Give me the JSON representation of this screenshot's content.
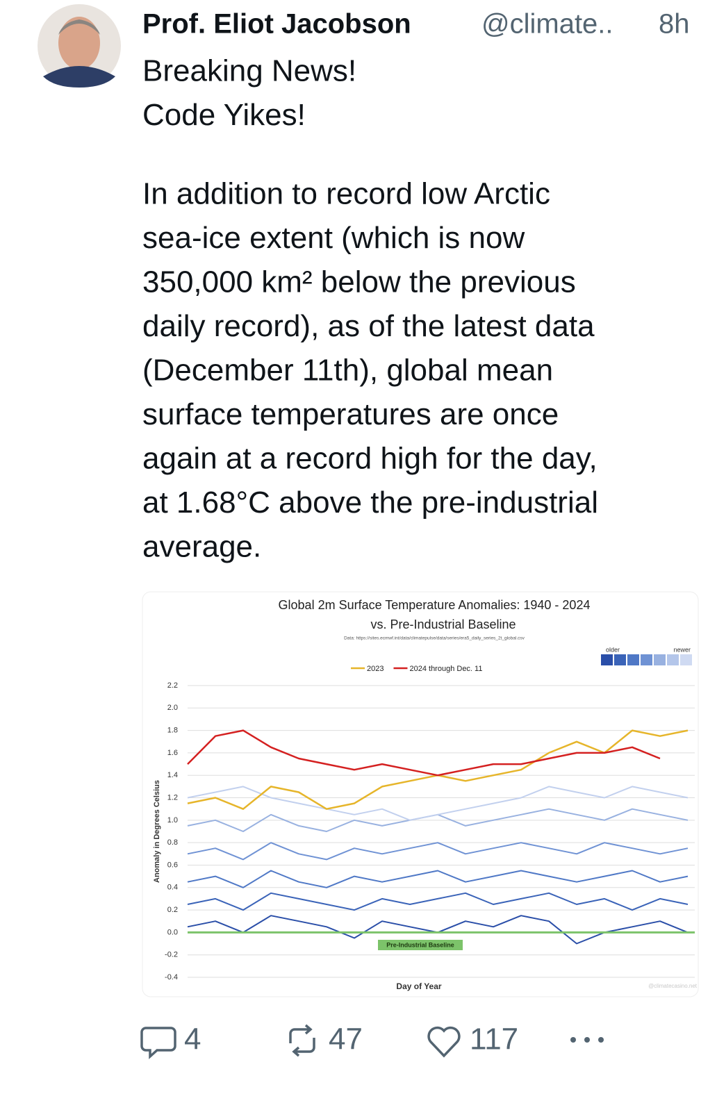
{
  "post": {
    "author": "Prof. Eliot Jacobson",
    "handle": "@climate..",
    "time": "8h",
    "body": [
      [
        "Breaking News!",
        "Code Yikes!"
      ],
      [
        "In addition to record low Arctic",
        "sea-ice extent (which is now",
        "350,000 km² below the previous",
        "daily record), as of the latest data",
        "(December 11th), global mean",
        "surface temperatures are once",
        "again at a record high for the day,",
        "at 1.68°C above the pre-industrial",
        "average."
      ]
    ],
    "actions": {
      "replies": 4,
      "reposts": 47,
      "likes": 117
    }
  },
  "chart_data": {
    "type": "line",
    "title": "Global 2m Surface Temperature Anomalies: 1940 - 2024",
    "subtitle": "vs. Pre-Industrial Baseline",
    "source": "Data: https://sites.ecmwf.int/data/climatepulse/data/series/era5_daily_series_2t_global.csv",
    "ylabel": "Anomaly in Degrees Celsius",
    "xlabel": "Day of Year",
    "watermark": "@climatecasino.net",
    "scale_labels": [
      "older",
      "newer"
    ],
    "grid": true,
    "xlim": [
      1,
      366
    ],
    "ylim": [
      -0.4,
      2.2
    ],
    "yticks": [
      2.2,
      {
        "value": 2,
        "label": "2.0"
      },
      1.8,
      1.6,
      1.4,
      1.2,
      {
        "value": 1,
        "label": "1.0"
      },
      0.8,
      0.6,
      0.4,
      0.2,
      {
        "value": 0,
        "label": "0.0"
      },
      -0.2,
      -0.4
    ],
    "baseline": {
      "value": 0,
      "label": "Pre-Industrial Baseline",
      "color": "#7cc36a"
    },
    "x": [
      1,
      21,
      41,
      61,
      81,
      101,
      121,
      141,
      161,
      181,
      201,
      221,
      241,
      261,
      281,
      301,
      321,
      341,
      361
    ],
    "series": [
      {
        "color": "#2a4ea8",
        "values": [
          0.05,
          0.1,
          0.0,
          0.15,
          0.1,
          0.05,
          -0.05,
          0.1,
          0.05,
          0.0,
          0.1,
          0.05,
          0.15,
          0.1,
          -0.1,
          0.0,
          0.05,
          0.1,
          0.0
        ]
      },
      {
        "color": "#3a63b8",
        "values": [
          0.25,
          0.3,
          0.2,
          0.35,
          0.3,
          0.25,
          0.2,
          0.3,
          0.25,
          0.3,
          0.35,
          0.25,
          0.3,
          0.35,
          0.25,
          0.3,
          0.2,
          0.3,
          0.25
        ]
      },
      {
        "color": "#4f78c6",
        "values": [
          0.45,
          0.5,
          0.4,
          0.55,
          0.45,
          0.4,
          0.5,
          0.45,
          0.5,
          0.55,
          0.45,
          0.5,
          0.55,
          0.5,
          0.45,
          0.5,
          0.55,
          0.45,
          0.5
        ]
      },
      {
        "color": "#6f92d4",
        "values": [
          0.7,
          0.75,
          0.65,
          0.8,
          0.7,
          0.65,
          0.75,
          0.7,
          0.75,
          0.8,
          0.7,
          0.75,
          0.8,
          0.75,
          0.7,
          0.8,
          0.75,
          0.7,
          0.75
        ]
      },
      {
        "color": "#98b1e0",
        "values": [
          0.95,
          1.0,
          0.9,
          1.05,
          0.95,
          0.9,
          1.0,
          0.95,
          1.0,
          1.05,
          0.95,
          1.0,
          1.05,
          1.1,
          1.05,
          1.0,
          1.1,
          1.05,
          1.0
        ]
      },
      {
        "color": "#c2d0ee",
        "values": [
          1.2,
          1.25,
          1.3,
          1.2,
          1.15,
          1.1,
          1.05,
          1.1,
          1.0,
          1.05,
          1.1,
          1.15,
          1.2,
          1.3,
          1.25,
          1.2,
          1.3,
          1.25,
          1.2
        ]
      },
      {
        "name": "2023",
        "color": "#e6b52a",
        "values": [
          1.15,
          1.2,
          1.1,
          1.3,
          1.25,
          1.1,
          1.15,
          1.3,
          1.35,
          1.4,
          1.35,
          1.4,
          1.45,
          1.6,
          1.7,
          1.6,
          1.8,
          1.75,
          1.8
        ]
      },
      {
        "name": "2024 through Dec. 11",
        "color": "#d42020",
        "values": [
          1.5,
          1.75,
          1.8,
          1.65,
          1.55,
          1.5,
          1.45,
          1.5,
          1.45,
          1.4,
          1.45,
          1.5,
          1.5,
          1.55,
          1.6,
          1.6,
          1.65,
          1.55,
          null
        ]
      }
    ]
  }
}
